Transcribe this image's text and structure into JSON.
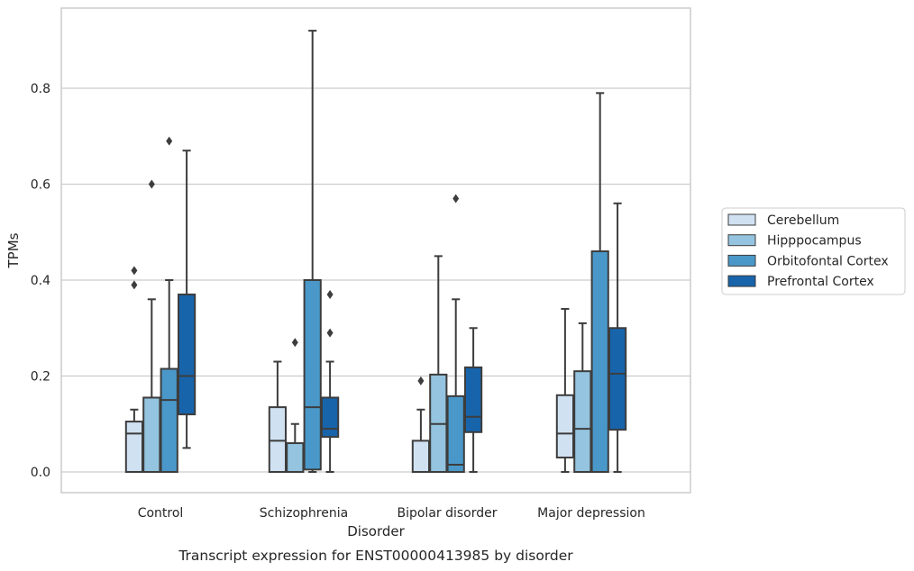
{
  "chart_data": {
    "type": "box",
    "title": "Transcript expression for ENST00000413985 by disorder",
    "xlabel": "Disorder",
    "ylabel": "TPMs",
    "ylim": [
      -0.045,
      0.975
    ],
    "yticks": [
      0.0,
      0.2,
      0.4,
      0.6,
      0.8
    ],
    "ytick_labels": [
      "0.0",
      "0.2",
      "0.4",
      "0.6",
      "0.8"
    ],
    "grid": "horizontal",
    "legend_position": "right",
    "categories": [
      "Control",
      "Schizophrenia",
      "Bipolar disorder",
      "Major depression"
    ],
    "series": [
      {
        "name": "Cerebellum",
        "color": "#d0e1f2",
        "boxes": [
          {
            "whisker_low": 0.0,
            "q1": 0.0,
            "median": 0.08,
            "q3": 0.105,
            "whisker_high": 0.13,
            "outliers": [
              0.39,
              0.42
            ]
          },
          {
            "whisker_low": 0.0,
            "q1": 0.0,
            "median": 0.065,
            "q3": 0.135,
            "whisker_high": 0.23,
            "outliers": []
          },
          {
            "whisker_low": 0.0,
            "q1": 0.0,
            "median": 0.0,
            "q3": 0.065,
            "whisker_high": 0.13,
            "outliers": [
              0.19
            ]
          },
          {
            "whisker_low": 0.0,
            "q1": 0.03,
            "median": 0.08,
            "q3": 0.16,
            "whisker_high": 0.34,
            "outliers": []
          }
        ]
      },
      {
        "name": "Hipppocampus",
        "color": "#94c4df",
        "boxes": [
          {
            "whisker_low": 0.0,
            "q1": 0.0,
            "median": 0.155,
            "q3": 0.155,
            "whisker_high": 0.36,
            "outliers": [
              0.6
            ]
          },
          {
            "whisker_low": 0.0,
            "q1": 0.0,
            "median": 0.0,
            "q3": 0.06,
            "whisker_high": 0.1,
            "outliers": [
              0.27
            ]
          },
          {
            "whisker_low": 0.0,
            "q1": 0.0,
            "median": 0.1,
            "q3": 0.203,
            "whisker_high": 0.45,
            "outliers": []
          },
          {
            "whisker_low": 0.0,
            "q1": 0.0,
            "median": 0.09,
            "q3": 0.21,
            "whisker_high": 0.31,
            "outliers": []
          }
        ]
      },
      {
        "name": "Orbitofontal Cortex",
        "color": "#4a98c9",
        "boxes": [
          {
            "whisker_low": 0.0,
            "q1": 0.0,
            "median": 0.15,
            "q3": 0.215,
            "whisker_high": 0.4,
            "outliers": [
              0.69
            ]
          },
          {
            "whisker_low": 0.0,
            "q1": 0.005,
            "median": 0.135,
            "q3": 0.4,
            "whisker_high": 0.92,
            "outliers": []
          },
          {
            "whisker_low": 0.0,
            "q1": 0.0,
            "median": 0.015,
            "q3": 0.158,
            "whisker_high": 0.36,
            "outliers": [
              0.57
            ]
          },
          {
            "whisker_low": 0.0,
            "q1": 0.0,
            "median": 0.0,
            "q3": 0.46,
            "whisker_high": 0.79,
            "outliers": []
          }
        ]
      },
      {
        "name": "Prefrontal Cortex",
        "color": "#1764ab",
        "boxes": [
          {
            "whisker_low": 0.05,
            "q1": 0.12,
            "median": 0.2,
            "q3": 0.37,
            "whisker_high": 0.67,
            "outliers": []
          },
          {
            "whisker_low": 0.0,
            "q1": 0.073,
            "median": 0.09,
            "q3": 0.155,
            "whisker_high": 0.23,
            "outliers": [
              0.29,
              0.37
            ]
          },
          {
            "whisker_low": 0.0,
            "q1": 0.083,
            "median": 0.115,
            "q3": 0.218,
            "whisker_high": 0.3,
            "outliers": []
          },
          {
            "whisker_low": 0.0,
            "q1": 0.088,
            "median": 0.205,
            "q3": 0.3,
            "whisker_high": 0.56,
            "outliers": []
          }
        ]
      }
    ]
  }
}
